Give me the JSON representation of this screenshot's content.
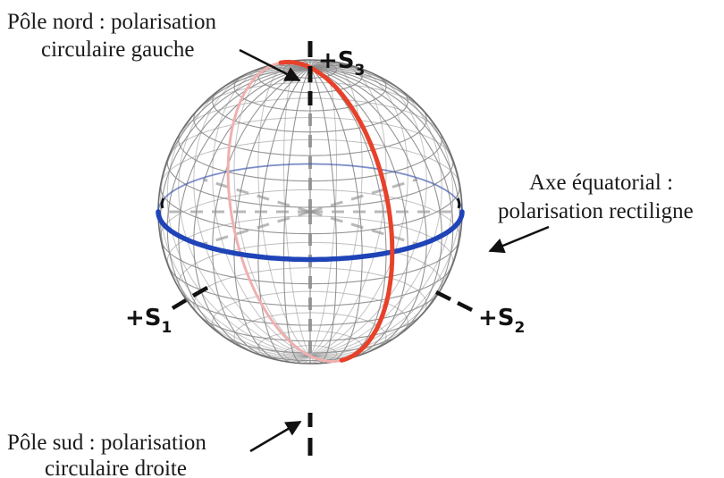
{
  "annotations": {
    "north": {
      "line1": "Pôle nord : polarisation",
      "line2": "circulaire gauche"
    },
    "equator": {
      "line1": "Axe équatorial :",
      "line2": "polarisation rectiligne"
    },
    "south": {
      "line1": "Pôle sud : polarisation",
      "line2": "circulaire droite"
    }
  },
  "axes": {
    "s1": {
      "prefix": "+S",
      "sub": "1"
    },
    "s2": {
      "prefix": "+S",
      "sub": "2"
    },
    "s3": {
      "prefix": "+S",
      "sub": "3"
    }
  },
  "colors": {
    "equator": "#1f44b8",
    "meridian": "#e8412a",
    "meridian_back": "#f0b0b0",
    "grid": "#8a8a8a",
    "axis": "#111111"
  }
}
